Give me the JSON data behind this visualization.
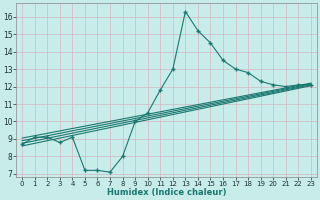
{
  "bg_color": "#c8ecea",
  "grid_color": "#d4b8c0",
  "line_color": "#1a7870",
  "marker_color": "#1a7870",
  "xlabel": "Humidex (Indice chaleur)",
  "xlim": [
    -0.5,
    23.5
  ],
  "ylim": [
    6.8,
    16.8
  ],
  "xticks": [
    0,
    1,
    2,
    3,
    4,
    5,
    6,
    7,
    8,
    9,
    10,
    11,
    12,
    13,
    14,
    15,
    16,
    17,
    18,
    19,
    20,
    21,
    22,
    23
  ],
  "yticks": [
    7,
    8,
    9,
    10,
    11,
    12,
    13,
    14,
    15,
    16
  ],
  "main_line_x": [
    0,
    1,
    2,
    3,
    4,
    5,
    6,
    7,
    8,
    9,
    10,
    11,
    12,
    13,
    14,
    15,
    16,
    17,
    18,
    19,
    20,
    21,
    22,
    23
  ],
  "main_line_y": [
    8.7,
    9.1,
    9.1,
    8.8,
    9.1,
    7.2,
    7.2,
    7.1,
    8.0,
    10.0,
    10.5,
    11.8,
    13.0,
    16.3,
    15.2,
    14.5,
    13.5,
    13.0,
    12.8,
    12.3,
    12.1,
    12.0,
    12.1,
    12.1
  ],
  "trend_lines": [
    {
      "x": [
        0,
        23
      ],
      "y": [
        8.6,
        12.05
      ]
    },
    {
      "x": [
        0,
        23
      ],
      "y": [
        8.75,
        12.1
      ]
    },
    {
      "x": [
        0,
        23
      ],
      "y": [
        8.9,
        12.15
      ]
    },
    {
      "x": [
        0,
        23
      ],
      "y": [
        9.05,
        12.2
      ]
    }
  ]
}
